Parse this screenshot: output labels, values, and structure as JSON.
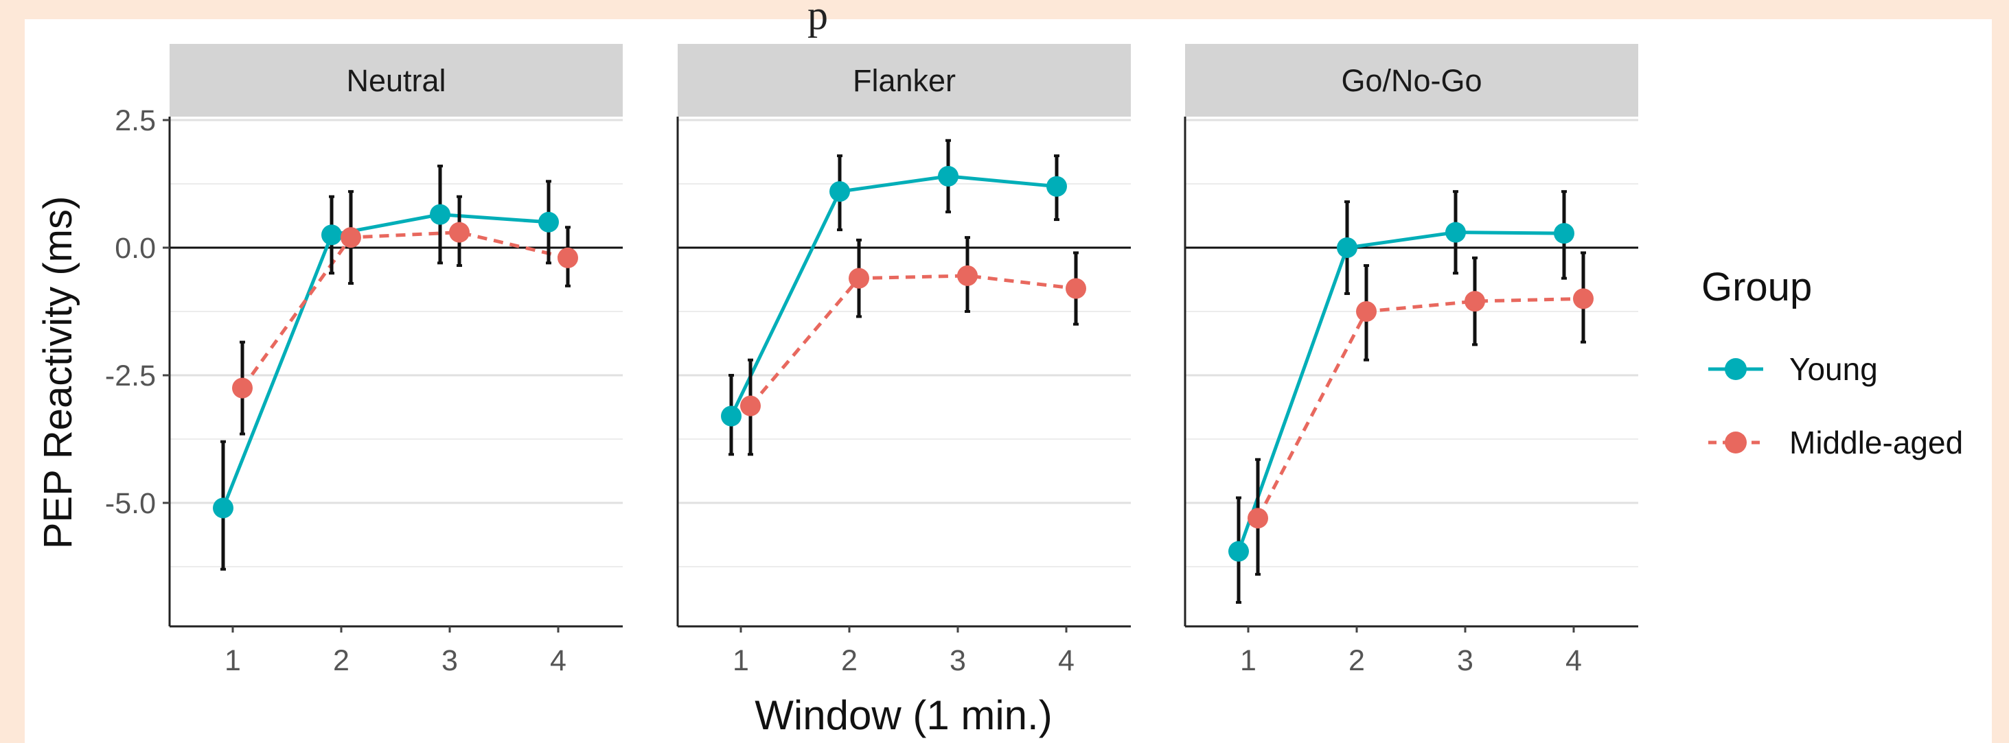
{
  "chart_data": {
    "type": "line",
    "title_fragment": "p",
    "xlabel": "Window (1 min.)",
    "ylabel": "PEP Reactivity (ms)",
    "x": [
      1,
      2,
      3,
      4
    ],
    "x_tick_labels": [
      "1",
      "2",
      "3",
      "4"
    ],
    "y_ticks": [
      2.5,
      0.0,
      -2.5,
      -5.0
    ],
    "y_tick_labels": [
      "2.5",
      "0.0",
      "-2.5",
      "-5.0"
    ],
    "ylim": [
      -7.4,
      2.5
    ],
    "grid": true,
    "zero_line": true,
    "legend": {
      "title": "Group",
      "placement": "right",
      "entries": [
        "Young",
        "Middle-aged"
      ]
    },
    "series_styles": [
      {
        "name": "Young",
        "color": "#00aeb8",
        "dash": "solid"
      },
      {
        "name": "Middle-aged",
        "color": "#e8685e",
        "dash": "dashed"
      }
    ],
    "panels": [
      {
        "label": "Neutral",
        "series": [
          {
            "name": "Young",
            "values": [
              -5.1,
              0.25,
              0.65,
              0.5
            ],
            "error_low": [
              -6.3,
              -0.5,
              -0.3,
              -0.3
            ],
            "error_high": [
              -3.8,
              1.0,
              1.6,
              1.3
            ]
          },
          {
            "name": "Middle-aged",
            "values": [
              -2.75,
              0.2,
              0.3,
              -0.2
            ],
            "error_low": [
              -3.65,
              -0.7,
              -0.35,
              -0.75
            ],
            "error_high": [
              -1.85,
              1.1,
              1.0,
              0.4
            ]
          }
        ]
      },
      {
        "label": "Flanker",
        "series": [
          {
            "name": "Young",
            "values": [
              -3.3,
              1.1,
              1.4,
              1.2
            ],
            "error_low": [
              -4.05,
              0.35,
              0.7,
              0.55
            ],
            "error_high": [
              -2.5,
              1.8,
              2.1,
              1.8
            ]
          },
          {
            "name": "Middle-aged",
            "values": [
              -3.1,
              -0.6,
              -0.55,
              -0.8
            ],
            "error_low": [
              -4.05,
              -1.35,
              -1.25,
              -1.5
            ],
            "error_high": [
              -2.2,
              0.15,
              0.2,
              -0.1
            ]
          }
        ]
      },
      {
        "label": "Go/No-Go",
        "series": [
          {
            "name": "Young",
            "values": [
              -5.95,
              0.0,
              0.3,
              0.28
            ],
            "error_low": [
              -6.95,
              -0.9,
              -0.5,
              -0.6
            ],
            "error_high": [
              -4.9,
              0.9,
              1.1,
              1.1
            ]
          },
          {
            "name": "Middle-aged",
            "values": [
              -5.3,
              -1.25,
              -1.05,
              -1.0
            ],
            "error_low": [
              -6.4,
              -2.2,
              -1.9,
              -1.85
            ],
            "error_high": [
              -4.15,
              -0.35,
              -0.2,
              -0.1
            ]
          }
        ]
      }
    ]
  }
}
